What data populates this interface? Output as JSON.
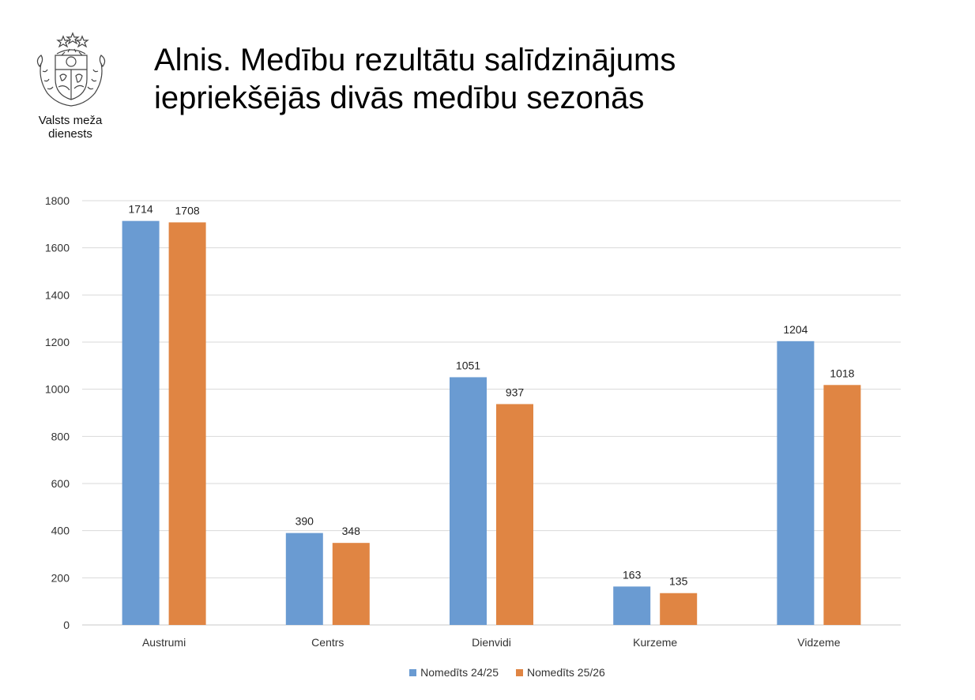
{
  "header": {
    "title_line1": "Alnis. Medību rezultātu salīdzinājums",
    "title_line2": "iepriekšējās divās medību sezonās",
    "org_line1": "Valsts meža",
    "org_line2": "dienests",
    "logo_icon": "latvia-coat-of-arms-icon"
  },
  "chart_data": {
    "type": "bar",
    "title": "",
    "xlabel": "",
    "ylabel": "",
    "categories": [
      "Austrumi",
      "Centrs",
      "Dienvidi",
      "Kurzeme",
      "Vidzeme"
    ],
    "series": [
      {
        "name": "Nomedīts 24/25",
        "values": [
          1714,
          390,
          1051,
          163,
          1204
        ],
        "color": "#6A9BD2"
      },
      {
        "name": "Nomedīts 25/26",
        "values": [
          1708,
          348,
          937,
          135,
          1018
        ],
        "color": "#E08543"
      }
    ],
    "ylim": [
      0,
      1800
    ],
    "yticks": [
      0,
      200,
      400,
      600,
      800,
      1000,
      1200,
      1400,
      1600,
      1800
    ],
    "grid": true,
    "legend": "bottom",
    "data_labels": true
  }
}
